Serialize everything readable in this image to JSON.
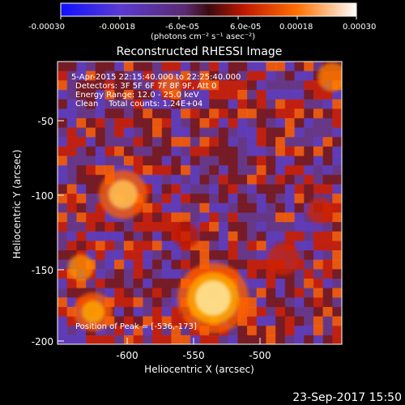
{
  "colorbar": {
    "tick_labels": [
      "-0.00030",
      "-0.00018",
      "-6.0e-05",
      "6.0e-05",
      "0.00018",
      "0.00030"
    ],
    "units_label": "(photons cm⁻² s⁻¹ asec⁻²)"
  },
  "plot": {
    "title": "Reconstructed RHESSI Image",
    "time_range": "5-Apr-2015 22:15:40.000 to 22:25:40.000",
    "detectors": "Detectors: 3F 5F 6F 7F 8F 9F, Att 0",
    "energy_range": "Energy Range: 12.0 - 25.0 keV",
    "clean_counts": "Clean    Total counts: 1.24E+04",
    "peak_position": "Position of Peak = [-536,-173]",
    "xlabel": "Heliocentric X (arcsec)",
    "ylabel": "Heliocentric Y (arcsec)",
    "x_ticks": [
      "-600",
      "-550",
      "-500"
    ],
    "y_ticks": [
      "-50",
      "-100",
      "-150",
      "-200"
    ],
    "xlim": [
      -645,
      -457
    ],
    "ylim": [
      -203,
      -18
    ]
  },
  "footer": {
    "timestamp": "23-Sep-2017 15:50"
  },
  "colors": {
    "background": "#000000",
    "text": "#ffffff",
    "colormap": [
      "#1010ff",
      "#6040c0",
      "#6a3a8a",
      "#7a1a1a",
      "#d02000",
      "#ff6000",
      "#ffb000",
      "#fff0b0"
    ]
  }
}
